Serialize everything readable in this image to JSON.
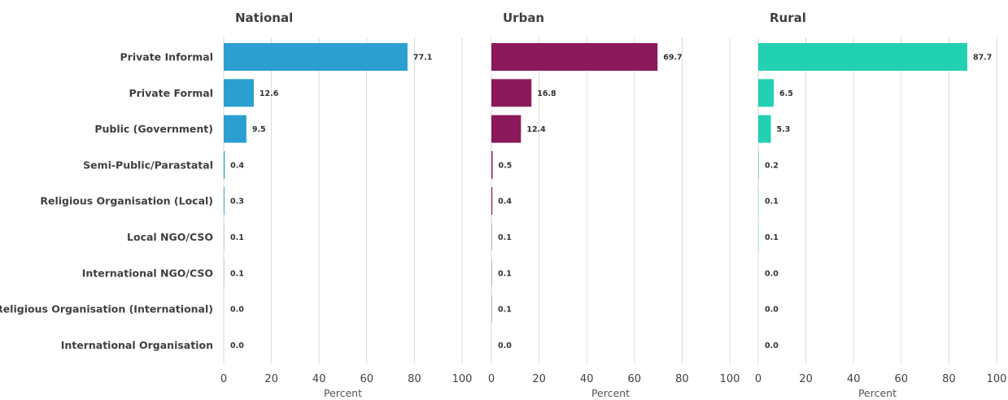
{
  "chart_data": {
    "type": "bar",
    "orientation": "horizontal",
    "categories": [
      "Private Informal",
      "Private Formal",
      "Public (Government)",
      "Semi-Public/Parastatal",
      "Religious Organisation (Local)",
      "Local NGO/CSO",
      "International NGO/CSO",
      "Religious Organisation (International)",
      "International Organisation"
    ],
    "panels": [
      {
        "title": "National",
        "color": "#2a9fd0",
        "values": [
          77.1,
          12.6,
          9.5,
          0.4,
          0.3,
          0.1,
          0.1,
          0.0,
          0.0
        ],
        "value_labels": [
          "77.1",
          "12.6",
          "9.5",
          "0.4",
          "0.3",
          "0.1",
          "0.1",
          "0.0",
          "0.0"
        ]
      },
      {
        "title": "Urban",
        "color": "#8b1a5a",
        "values": [
          69.7,
          16.8,
          12.4,
          0.5,
          0.4,
          0.1,
          0.1,
          0.1,
          0.0
        ],
        "value_labels": [
          "69.7",
          "16.8",
          "12.4",
          "0.5",
          "0.4",
          "0.1",
          "0.1",
          "0.1",
          "0.0"
        ]
      },
      {
        "title": "Rural",
        "color": "#22d1b2",
        "values": [
          87.7,
          6.5,
          5.3,
          0.2,
          0.1,
          0.1,
          0.0,
          0.0,
          0.0
        ],
        "value_labels": [
          "87.7",
          "6.5",
          "5.3",
          "0.2",
          "0.1",
          "0.1",
          "0.0",
          "0.0",
          "0.0"
        ]
      }
    ],
    "xlabel": "Percent",
    "xlim": [
      0,
      100
    ],
    "xticks": [
      0,
      20,
      40,
      60,
      80,
      100
    ],
    "grid": true,
    "legend": "none"
  }
}
